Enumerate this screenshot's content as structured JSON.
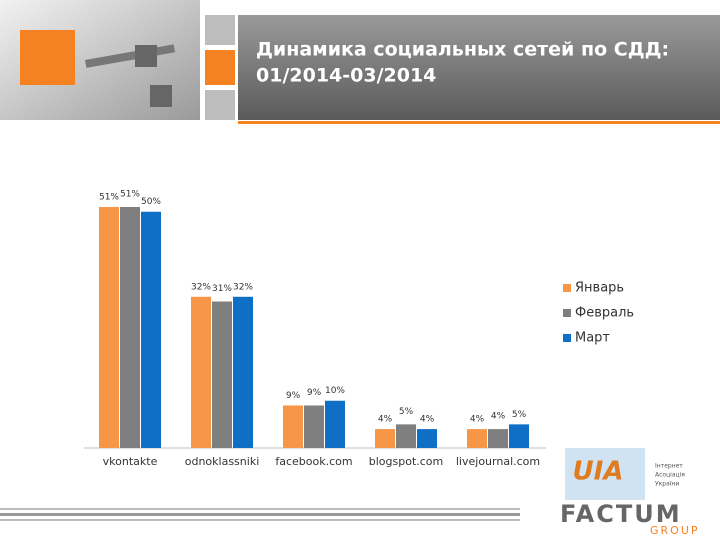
{
  "chart_data": {
    "type": "bar",
    "title": [
      "Динамика социальных сетей по СДД:",
      "01/2014-03/2014"
    ],
    "categories": [
      "vkontakte",
      "odnoklassniki",
      "facebook.com",
      "blogspot.com",
      "livejournal.com"
    ],
    "series": [
      {
        "name": "Январь",
        "color": "#f79646",
        "values": [
          51,
          32,
          9,
          4,
          4
        ],
        "value_labels": [
          "51%",
          "32%",
          "9%",
          "4%",
          "4%"
        ]
      },
      {
        "name": "Февраль",
        "color": "#7f7f7f",
        "values": [
          51,
          31,
          9,
          5,
          4
        ],
        "value_labels": [
          "51%",
          "31%",
          "9%",
          "5%",
          "4%"
        ]
      },
      {
        "name": "Март",
        "color": "#0f6fc6",
        "values": [
          50,
          32,
          10,
          4,
          5
        ],
        "value_labels": [
          "50%",
          "32%",
          "10%",
          "4%",
          "5%"
        ]
      }
    ],
    "legend": "right"
  },
  "footer": {
    "logo_left": "UIA",
    "logo_left_caption": [
      "Інтернет",
      "Асоціація",
      "України"
    ],
    "logo_right": "FACTUM",
    "logo_right_sub": "GROUP"
  }
}
